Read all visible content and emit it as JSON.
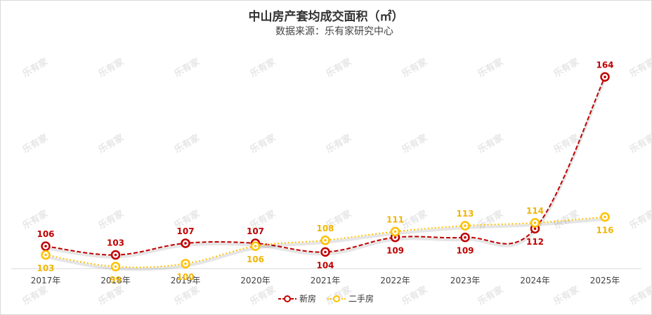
{
  "chart_data": {
    "type": "line",
    "title": "中山房产套均成交面积（㎡）",
    "subtitle": "数据来源：乐有家研究中心",
    "categories": [
      "2017年",
      "2018年",
      "2019年",
      "2020年",
      "2021年",
      "2022年",
      "2023年",
      "2024年",
      "2025年"
    ],
    "series": [
      {
        "name": "新房",
        "values": [
          106,
          103,
          107,
          107,
          104,
          109,
          109,
          112,
          164
        ],
        "color": "#c00000",
        "dash": "dashed"
      },
      {
        "name": "二手房",
        "values": [
          103,
          99,
          100,
          106,
          108,
          111,
          113,
          114,
          116
        ],
        "color": "#ffc000",
        "dash": "dotted"
      }
    ],
    "ylim": [
      85,
      170
    ],
    "grid": false,
    "legend_position": "bottom",
    "watermark": "乐有家"
  }
}
